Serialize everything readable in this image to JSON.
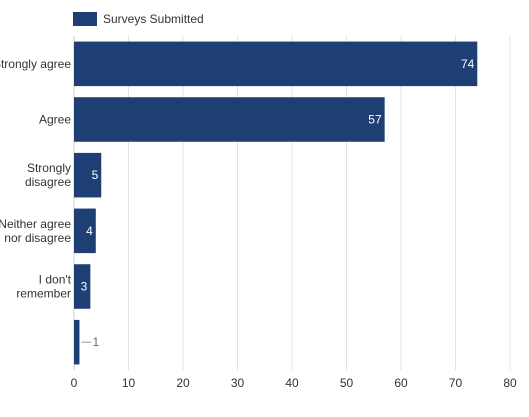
{
  "chart_data": {
    "type": "bar",
    "orientation": "horizontal",
    "categories": [
      [
        "Strongly agree"
      ],
      [
        "Agree"
      ],
      [
        "Strongly",
        "disagree"
      ],
      [
        "Neither agree",
        "nor disagree"
      ],
      [
        "I don't",
        "remember"
      ],
      [
        ""
      ]
    ],
    "series": [
      {
        "name": "Surveys Submitted",
        "values": [
          74,
          57,
          5,
          4,
          3,
          1
        ]
      }
    ],
    "data_labels": [
      "74",
      "57",
      "5",
      "4",
      "3",
      "1"
    ],
    "xlim": [
      0,
      80
    ],
    "x_ticks": [
      "0",
      "10",
      "20",
      "30",
      "40",
      "50",
      "60",
      "70",
      "80"
    ],
    "x_tick_values": [
      0,
      10,
      20,
      30,
      40,
      50,
      60,
      70,
      80
    ],
    "grid": "vertical",
    "legend_position": "top-left",
    "colors": {
      "bar": "#1e3f73",
      "grid": "#e3e3e3",
      "axis": "#cccccc",
      "label": "#333333",
      "data_label": "#ffffff"
    }
  }
}
